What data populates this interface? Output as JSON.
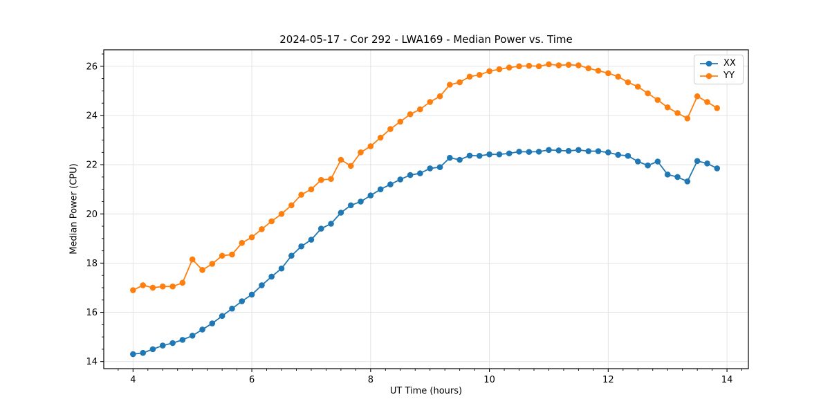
{
  "chart_data": {
    "type": "line",
    "title": "2024-05-17 - Cor 292 - LWA169 - Median Power vs. Time",
    "xlabel": "UT Time (hours)",
    "ylabel": "Median Power (CPU)",
    "xlim": [
      3.507,
      14.36
    ],
    "ylim": [
      13.71,
      26.67
    ],
    "x_ticks": [
      4,
      6,
      8,
      10,
      12,
      14
    ],
    "y_ticks": [
      14,
      16,
      18,
      20,
      22,
      24,
      26
    ],
    "x_minor_step": 0.25,
    "y_minor_step": 0.5,
    "grid": "major",
    "grid_color": "#e0e0e0",
    "legend_position": "upper right",
    "x": [
      4.0,
      4.167,
      4.333,
      4.5,
      4.667,
      4.833,
      5.0,
      5.167,
      5.333,
      5.5,
      5.667,
      5.833,
      6.0,
      6.167,
      6.333,
      6.5,
      6.667,
      6.833,
      7.0,
      7.167,
      7.333,
      7.5,
      7.667,
      7.833,
      8.0,
      8.167,
      8.333,
      8.5,
      8.667,
      8.833,
      9.0,
      9.167,
      9.333,
      9.5,
      9.667,
      9.833,
      10.0,
      10.167,
      10.333,
      10.5,
      10.667,
      10.833,
      11.0,
      11.167,
      11.333,
      11.5,
      11.667,
      11.833,
      12.0,
      12.167,
      12.333,
      12.5,
      12.667,
      12.833,
      13.0,
      13.167,
      13.333,
      13.5,
      13.667,
      13.833
    ],
    "series": [
      {
        "name": "XX",
        "color": "#1f77b4",
        "values": [
          14.3,
          14.35,
          14.5,
          14.65,
          14.75,
          14.88,
          15.05,
          15.3,
          15.55,
          15.85,
          16.15,
          16.45,
          16.72,
          17.1,
          17.45,
          17.78,
          18.3,
          18.68,
          18.95,
          19.4,
          19.6,
          20.05,
          20.35,
          20.5,
          20.75,
          21.0,
          21.2,
          21.4,
          21.58,
          21.65,
          21.85,
          21.9,
          22.28,
          22.2,
          22.37,
          22.36,
          22.42,
          22.42,
          22.46,
          22.53,
          22.52,
          22.53,
          22.6,
          22.58,
          22.56,
          22.6,
          22.55,
          22.55,
          22.5,
          22.4,
          22.36,
          22.13,
          21.97,
          22.13,
          21.6,
          21.5,
          21.32,
          22.15,
          22.05,
          21.85
        ]
      },
      {
        "name": "YY",
        "color": "#ff7f0e",
        "values": [
          16.9,
          17.1,
          17.0,
          17.05,
          17.05,
          17.2,
          18.15,
          17.72,
          17.97,
          18.3,
          18.35,
          18.82,
          19.05,
          19.38,
          19.7,
          20.0,
          20.35,
          20.78,
          21.0,
          21.38,
          21.42,
          22.2,
          21.95,
          22.5,
          22.75,
          23.1,
          23.45,
          23.75,
          24.05,
          24.25,
          24.55,
          24.78,
          25.25,
          25.35,
          25.58,
          25.65,
          25.8,
          25.88,
          25.95,
          26.0,
          26.02,
          26.0,
          26.08,
          26.04,
          26.06,
          26.04,
          25.92,
          25.82,
          25.72,
          25.58,
          25.35,
          25.17,
          24.9,
          24.63,
          24.33,
          24.1,
          23.88,
          24.78,
          24.55,
          24.3
        ]
      }
    ]
  }
}
